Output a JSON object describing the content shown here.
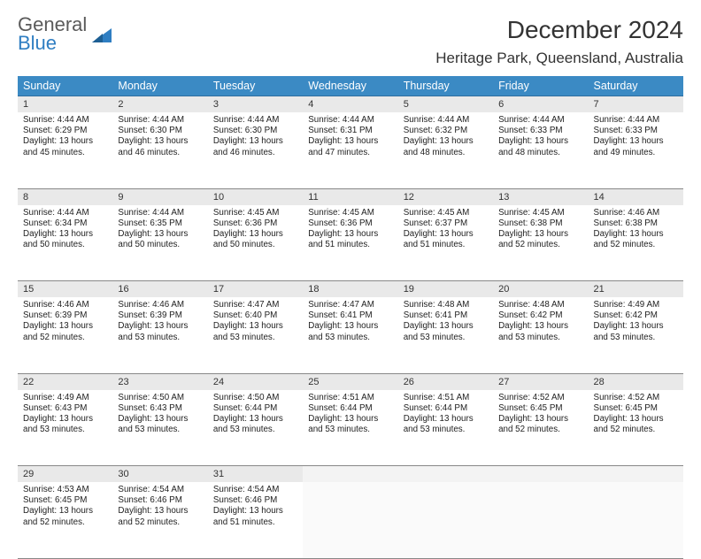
{
  "logo": {
    "line1": "General",
    "line2": "Blue"
  },
  "title": "December 2024",
  "location": "Heritage Park, Queensland, Australia",
  "colors": {
    "header_bg": "#3b8ac4",
    "header_text": "#ffffff",
    "daynum_bg": "#e9e9e9",
    "border": "#888888",
    "logo_gray": "#5a5a5a",
    "logo_blue": "#2f7ec2"
  },
  "day_headers": [
    "Sunday",
    "Monday",
    "Tuesday",
    "Wednesday",
    "Thursday",
    "Friday",
    "Saturday"
  ],
  "weeks": [
    [
      {
        "n": "1",
        "sr": "4:44 AM",
        "ss": "6:29 PM",
        "dl": "13 hours and 45 minutes."
      },
      {
        "n": "2",
        "sr": "4:44 AM",
        "ss": "6:30 PM",
        "dl": "13 hours and 46 minutes."
      },
      {
        "n": "3",
        "sr": "4:44 AM",
        "ss": "6:30 PM",
        "dl": "13 hours and 46 minutes."
      },
      {
        "n": "4",
        "sr": "4:44 AM",
        "ss": "6:31 PM",
        "dl": "13 hours and 47 minutes."
      },
      {
        "n": "5",
        "sr": "4:44 AM",
        "ss": "6:32 PM",
        "dl": "13 hours and 48 minutes."
      },
      {
        "n": "6",
        "sr": "4:44 AM",
        "ss": "6:33 PM",
        "dl": "13 hours and 48 minutes."
      },
      {
        "n": "7",
        "sr": "4:44 AM",
        "ss": "6:33 PM",
        "dl": "13 hours and 49 minutes."
      }
    ],
    [
      {
        "n": "8",
        "sr": "4:44 AM",
        "ss": "6:34 PM",
        "dl": "13 hours and 50 minutes."
      },
      {
        "n": "9",
        "sr": "4:44 AM",
        "ss": "6:35 PM",
        "dl": "13 hours and 50 minutes."
      },
      {
        "n": "10",
        "sr": "4:45 AM",
        "ss": "6:36 PM",
        "dl": "13 hours and 50 minutes."
      },
      {
        "n": "11",
        "sr": "4:45 AM",
        "ss": "6:36 PM",
        "dl": "13 hours and 51 minutes."
      },
      {
        "n": "12",
        "sr": "4:45 AM",
        "ss": "6:37 PM",
        "dl": "13 hours and 51 minutes."
      },
      {
        "n": "13",
        "sr": "4:45 AM",
        "ss": "6:38 PM",
        "dl": "13 hours and 52 minutes."
      },
      {
        "n": "14",
        "sr": "4:46 AM",
        "ss": "6:38 PM",
        "dl": "13 hours and 52 minutes."
      }
    ],
    [
      {
        "n": "15",
        "sr": "4:46 AM",
        "ss": "6:39 PM",
        "dl": "13 hours and 52 minutes."
      },
      {
        "n": "16",
        "sr": "4:46 AM",
        "ss": "6:39 PM",
        "dl": "13 hours and 53 minutes."
      },
      {
        "n": "17",
        "sr": "4:47 AM",
        "ss": "6:40 PM",
        "dl": "13 hours and 53 minutes."
      },
      {
        "n": "18",
        "sr": "4:47 AM",
        "ss": "6:41 PM",
        "dl": "13 hours and 53 minutes."
      },
      {
        "n": "19",
        "sr": "4:48 AM",
        "ss": "6:41 PM",
        "dl": "13 hours and 53 minutes."
      },
      {
        "n": "20",
        "sr": "4:48 AM",
        "ss": "6:42 PM",
        "dl": "13 hours and 53 minutes."
      },
      {
        "n": "21",
        "sr": "4:49 AM",
        "ss": "6:42 PM",
        "dl": "13 hours and 53 minutes."
      }
    ],
    [
      {
        "n": "22",
        "sr": "4:49 AM",
        "ss": "6:43 PM",
        "dl": "13 hours and 53 minutes."
      },
      {
        "n": "23",
        "sr": "4:50 AM",
        "ss": "6:43 PM",
        "dl": "13 hours and 53 minutes."
      },
      {
        "n": "24",
        "sr": "4:50 AM",
        "ss": "6:44 PM",
        "dl": "13 hours and 53 minutes."
      },
      {
        "n": "25",
        "sr": "4:51 AM",
        "ss": "6:44 PM",
        "dl": "13 hours and 53 minutes."
      },
      {
        "n": "26",
        "sr": "4:51 AM",
        "ss": "6:44 PM",
        "dl": "13 hours and 53 minutes."
      },
      {
        "n": "27",
        "sr": "4:52 AM",
        "ss": "6:45 PM",
        "dl": "13 hours and 52 minutes."
      },
      {
        "n": "28",
        "sr": "4:52 AM",
        "ss": "6:45 PM",
        "dl": "13 hours and 52 minutes."
      }
    ],
    [
      {
        "n": "29",
        "sr": "4:53 AM",
        "ss": "6:45 PM",
        "dl": "13 hours and 52 minutes."
      },
      {
        "n": "30",
        "sr": "4:54 AM",
        "ss": "6:46 PM",
        "dl": "13 hours and 52 minutes."
      },
      {
        "n": "31",
        "sr": "4:54 AM",
        "ss": "6:46 PM",
        "dl": "13 hours and 51 minutes."
      },
      null,
      null,
      null,
      null
    ]
  ],
  "labels": {
    "sunrise": "Sunrise:",
    "sunset": "Sunset:",
    "daylight": "Daylight:"
  }
}
